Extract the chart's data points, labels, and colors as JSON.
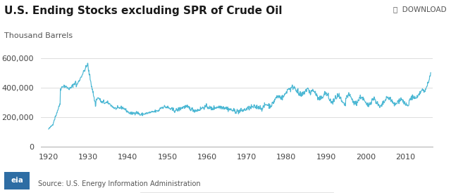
{
  "title": "U.S. Ending Stocks excluding SPR of Crude Oil",
  "ylabel": "Thousand Barrels",
  "legend_label": "U.S. Ending Stocks excluding SPR of Crude Oil",
  "source": "Source: U.S. Energy Information Administration",
  "download_label": "⤓  DOWNLOAD",
  "line_color": "#4db8d4",
  "background_color": "#ffffff",
  "grid_color": "#d8d8d8",
  "yticks": [
    0,
    200000,
    400000,
    600000
  ],
  "ytick_labels": [
    "0",
    "200,000",
    "400,000",
    "600,000"
  ],
  "xticks": [
    1920,
    1930,
    1940,
    1950,
    1960,
    1970,
    1980,
    1990,
    2000,
    2010
  ],
  "xlim": [
    1918,
    2017
  ],
  "ylim": [
    0,
    680000
  ],
  "title_fontsize": 11,
  "axis_label_fontsize": 8,
  "tick_fontsize": 8
}
